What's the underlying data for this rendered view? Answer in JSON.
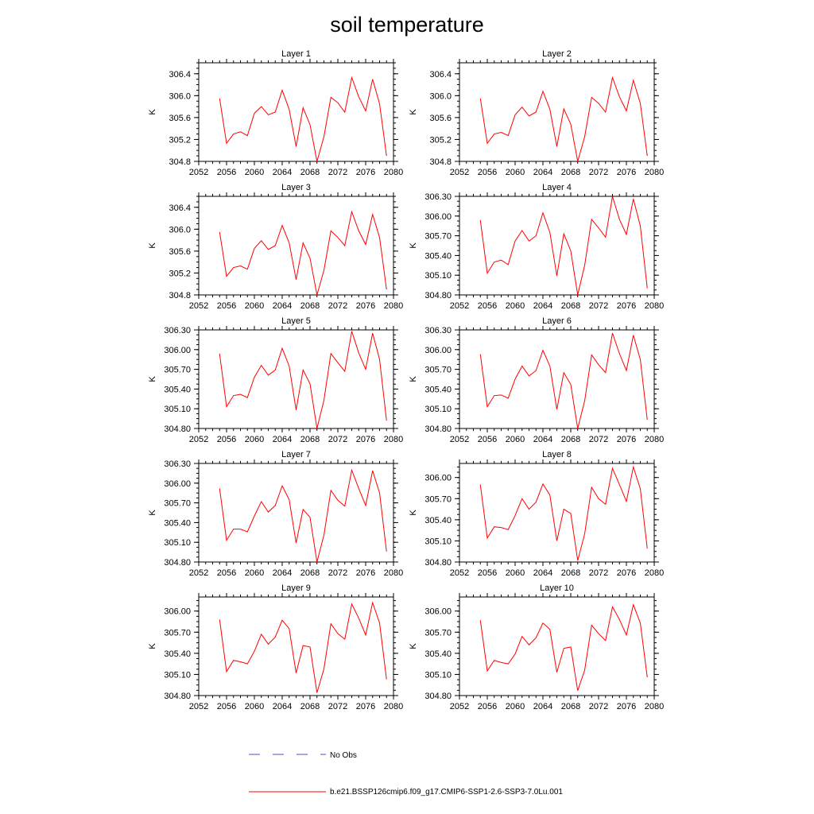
{
  "title": "soil temperature",
  "legend": {
    "obs_label": "No Obs",
    "obs_color": "#4455cc",
    "model_label": "b.e21.BSSP126cmip6.f09_g17.CMIP6-SSP1-2.6-SSP3-7.0Lu.001",
    "model_color": "#ff0000"
  },
  "chart_data": [
    {
      "type": "line",
      "title": "Layer 1",
      "xlabel": "",
      "ylabel": "K",
      "xlim": [
        2052,
        2080
      ],
      "ylim": [
        304.8,
        306.6
      ],
      "xticks": [
        "2052",
        "2056",
        "2060",
        "2064",
        "2068",
        "2072",
        "2076",
        "2080"
      ],
      "yticks": [
        "304.8",
        "305.2",
        "305.6",
        "306.0",
        "306.4"
      ],
      "x": [
        2055,
        2056,
        2057,
        2058,
        2059,
        2060,
        2061,
        2062,
        2063,
        2064,
        2065,
        2066,
        2067,
        2068,
        2069,
        2070,
        2071,
        2072,
        2073,
        2074,
        2075,
        2076,
        2077,
        2078,
        2079
      ],
      "series": [
        {
          "name": "b.e21.BSSP126cmip6.f09_g17.CMIP6-SSP1-2.6-SSP3-7.0Lu.001",
          "values": [
            305.95,
            305.13,
            305.3,
            305.34,
            305.27,
            305.68,
            305.8,
            305.65,
            305.7,
            306.1,
            305.75,
            305.07,
            305.78,
            305.47,
            304.8,
            305.25,
            305.97,
            305.87,
            305.7,
            306.33,
            305.98,
            305.72,
            306.3,
            305.85,
            304.9
          ]
        }
      ]
    },
    {
      "type": "line",
      "title": "Layer 2",
      "xlabel": "",
      "ylabel": "K",
      "xlim": [
        2052,
        2080
      ],
      "ylim": [
        304.8,
        306.6
      ],
      "xticks": [
        "2052",
        "2056",
        "2060",
        "2064",
        "2068",
        "2072",
        "2076",
        "2080"
      ],
      "yticks": [
        "304.8",
        "305.2",
        "305.6",
        "306.0",
        "306.4"
      ],
      "x": [
        2055,
        2056,
        2057,
        2058,
        2059,
        2060,
        2061,
        2062,
        2063,
        2064,
        2065,
        2066,
        2067,
        2068,
        2069,
        2070,
        2071,
        2072,
        2073,
        2074,
        2075,
        2076,
        2077,
        2078,
        2079
      ],
      "series": [
        {
          "name": "b.e21.BSSP126cmip6.f09_g17.CMIP6-SSP1-2.6-SSP3-7.0Lu.001",
          "values": [
            305.95,
            305.13,
            305.3,
            305.33,
            305.27,
            305.65,
            305.79,
            305.63,
            305.7,
            306.08,
            305.75,
            305.07,
            305.76,
            305.48,
            304.8,
            305.25,
            305.97,
            305.86,
            305.7,
            306.33,
            305.98,
            305.72,
            306.28,
            305.86,
            304.9
          ]
        }
      ]
    },
    {
      "type": "line",
      "title": "Layer 3",
      "xlabel": "",
      "ylabel": "K",
      "xlim": [
        2052,
        2080
      ],
      "ylim": [
        304.8,
        306.6
      ],
      "xticks": [
        "2052",
        "2056",
        "2060",
        "2064",
        "2068",
        "2072",
        "2076",
        "2080"
      ],
      "yticks": [
        "304.8",
        "305.2",
        "305.6",
        "306.0",
        "306.4"
      ],
      "x": [
        2055,
        2056,
        2057,
        2058,
        2059,
        2060,
        2061,
        2062,
        2063,
        2064,
        2065,
        2066,
        2067,
        2068,
        2069,
        2070,
        2071,
        2072,
        2073,
        2074,
        2075,
        2076,
        2077,
        2078,
        2079
      ],
      "series": [
        {
          "name": "b.e21.BSSP126cmip6.f09_g17.CMIP6-SSP1-2.6-SSP3-7.0Lu.001",
          "values": [
            305.95,
            305.14,
            305.3,
            305.33,
            305.27,
            305.65,
            305.79,
            305.63,
            305.7,
            306.07,
            305.75,
            305.08,
            305.75,
            305.47,
            304.8,
            305.25,
            305.97,
            305.85,
            305.7,
            306.32,
            305.97,
            305.72,
            306.27,
            305.85,
            304.9
          ]
        }
      ]
    },
    {
      "type": "line",
      "title": "Layer 4",
      "xlabel": "",
      "ylabel": "K",
      "xlim": [
        2052,
        2080
      ],
      "ylim": [
        304.8,
        306.3
      ],
      "xticks": [
        "2052",
        "2056",
        "2060",
        "2064",
        "2068",
        "2072",
        "2076",
        "2080"
      ],
      "yticks": [
        "304.80",
        "305.10",
        "305.40",
        "305.70",
        "306.00",
        "306.30"
      ],
      "x": [
        2055,
        2056,
        2057,
        2058,
        2059,
        2060,
        2061,
        2062,
        2063,
        2064,
        2065,
        2066,
        2067,
        2068,
        2069,
        2070,
        2071,
        2072,
        2073,
        2074,
        2075,
        2076,
        2077,
        2078,
        2079
      ],
      "series": [
        {
          "name": "b.e21.BSSP126cmip6.f09_g17.CMIP6-SSP1-2.6-SSP3-7.0Lu.001",
          "values": [
            305.94,
            305.13,
            305.3,
            305.33,
            305.26,
            305.62,
            305.78,
            305.62,
            305.7,
            306.05,
            305.75,
            305.09,
            305.73,
            305.47,
            304.8,
            305.25,
            305.95,
            305.82,
            305.68,
            306.3,
            305.95,
            305.72,
            306.26,
            305.85,
            304.9
          ]
        }
      ]
    },
    {
      "type": "line",
      "title": "Layer 5",
      "xlabel": "",
      "ylabel": "K",
      "xlim": [
        2052,
        2080
      ],
      "ylim": [
        304.8,
        306.3
      ],
      "xticks": [
        "2052",
        "2056",
        "2060",
        "2064",
        "2068",
        "2072",
        "2076",
        "2080"
      ],
      "yticks": [
        "304.80",
        "305.10",
        "305.40",
        "305.70",
        "306.00",
        "306.30"
      ],
      "x": [
        2055,
        2056,
        2057,
        2058,
        2059,
        2060,
        2061,
        2062,
        2063,
        2064,
        2065,
        2066,
        2067,
        2068,
        2069,
        2070,
        2071,
        2072,
        2073,
        2074,
        2075,
        2076,
        2077,
        2078,
        2079
      ],
      "series": [
        {
          "name": "b.e21.BSSP126cmip6.f09_g17.CMIP6-SSP1-2.6-SSP3-7.0Lu.001",
          "values": [
            305.94,
            305.13,
            305.3,
            305.32,
            305.27,
            305.58,
            305.76,
            305.61,
            305.69,
            306.02,
            305.75,
            305.08,
            305.69,
            305.48,
            304.8,
            305.23,
            305.94,
            305.8,
            305.67,
            306.28,
            305.95,
            305.7,
            306.25,
            305.85,
            304.92
          ]
        }
      ]
    },
    {
      "type": "line",
      "title": "Layer 6",
      "xlabel": "",
      "ylabel": "K",
      "xlim": [
        2052,
        2080
      ],
      "ylim": [
        304.8,
        306.3
      ],
      "xticks": [
        "2052",
        "2056",
        "2060",
        "2064",
        "2068",
        "2072",
        "2076",
        "2080"
      ],
      "yticks": [
        "304.80",
        "305.10",
        "305.40",
        "305.70",
        "306.00",
        "306.30"
      ],
      "x": [
        2055,
        2056,
        2057,
        2058,
        2059,
        2060,
        2061,
        2062,
        2063,
        2064,
        2065,
        2066,
        2067,
        2068,
        2069,
        2070,
        2071,
        2072,
        2073,
        2074,
        2075,
        2076,
        2077,
        2078,
        2079
      ],
      "series": [
        {
          "name": "b.e21.BSSP126cmip6.f09_g17.CMIP6-SSP1-2.6-SSP3-7.0Lu.001",
          "values": [
            305.93,
            305.13,
            305.3,
            305.31,
            305.26,
            305.55,
            305.75,
            305.6,
            305.68,
            305.99,
            305.75,
            305.09,
            305.65,
            305.47,
            304.8,
            305.22,
            305.92,
            305.77,
            305.65,
            306.25,
            305.94,
            305.68,
            306.22,
            305.85,
            304.93
          ]
        }
      ]
    },
    {
      "type": "line",
      "title": "Layer 7",
      "xlabel": "",
      "ylabel": "K",
      "xlim": [
        2052,
        2080
      ],
      "ylim": [
        304.8,
        306.3
      ],
      "xticks": [
        "2052",
        "2056",
        "2060",
        "2064",
        "2068",
        "2072",
        "2076",
        "2080"
      ],
      "yticks": [
        "304.80",
        "305.10",
        "305.40",
        "305.70",
        "306.00",
        "306.30"
      ],
      "x": [
        2055,
        2056,
        2057,
        2058,
        2059,
        2060,
        2061,
        2062,
        2063,
        2064,
        2065,
        2066,
        2067,
        2068,
        2069,
        2070,
        2071,
        2072,
        2073,
        2074,
        2075,
        2076,
        2077,
        2078,
        2079
      ],
      "series": [
        {
          "name": "b.e21.BSSP126cmip6.f09_g17.CMIP6-SSP1-2.6-SSP3-7.0Lu.001",
          "values": [
            305.92,
            305.13,
            305.3,
            305.3,
            305.26,
            305.5,
            305.72,
            305.56,
            305.66,
            305.96,
            305.75,
            305.09,
            305.6,
            305.48,
            304.8,
            305.21,
            305.89,
            305.74,
            305.65,
            306.2,
            305.92,
            305.66,
            306.19,
            305.85,
            304.96
          ]
        }
      ]
    },
    {
      "type": "line",
      "title": "Layer 8",
      "xlabel": "",
      "ylabel": "K",
      "xlim": [
        2052,
        2080
      ],
      "ylim": [
        304.8,
        306.2
      ],
      "xticks": [
        "2052",
        "2056",
        "2060",
        "2064",
        "2068",
        "2072",
        "2076",
        "2080"
      ],
      "yticks": [
        "304.80",
        "305.10",
        "305.40",
        "305.70",
        "306.00"
      ],
      "x": [
        2055,
        2056,
        2057,
        2058,
        2059,
        2060,
        2061,
        2062,
        2063,
        2064,
        2065,
        2066,
        2067,
        2068,
        2069,
        2070,
        2071,
        2072,
        2073,
        2074,
        2075,
        2076,
        2077,
        2078,
        2079
      ],
      "series": [
        {
          "name": "b.e21.BSSP126cmip6.f09_g17.CMIP6-SSP1-2.6-SSP3-7.0Lu.001",
          "values": [
            305.9,
            305.14,
            305.3,
            305.29,
            305.26,
            305.46,
            305.7,
            305.55,
            305.65,
            305.91,
            305.75,
            305.1,
            305.55,
            305.49,
            304.82,
            305.2,
            305.86,
            305.7,
            305.62,
            306.13,
            305.9,
            305.66,
            306.15,
            305.84,
            304.99
          ]
        }
      ]
    },
    {
      "type": "line",
      "title": "Layer 9",
      "xlabel": "",
      "ylabel": "K",
      "xlim": [
        2052,
        2080
      ],
      "ylim": [
        304.8,
        306.2
      ],
      "xticks": [
        "2052",
        "2056",
        "2060",
        "2064",
        "2068",
        "2072",
        "2076",
        "2080"
      ],
      "yticks": [
        "304.80",
        "305.10",
        "305.40",
        "305.70",
        "306.00"
      ],
      "x": [
        2055,
        2056,
        2057,
        2058,
        2059,
        2060,
        2061,
        2062,
        2063,
        2064,
        2065,
        2066,
        2067,
        2068,
        2069,
        2070,
        2071,
        2072,
        2073,
        2074,
        2075,
        2076,
        2077,
        2078,
        2079
      ],
      "series": [
        {
          "name": "b.e21.BSSP126cmip6.f09_g17.CMIP6-SSP1-2.6-SSP3-7.0Lu.001",
          "values": [
            305.88,
            305.14,
            305.3,
            305.28,
            305.25,
            305.43,
            305.67,
            305.53,
            305.63,
            305.87,
            305.75,
            305.12,
            305.51,
            305.49,
            304.84,
            305.18,
            305.82,
            305.68,
            305.6,
            306.1,
            305.9,
            305.66,
            306.12,
            305.83,
            305.03
          ]
        }
      ]
    },
    {
      "type": "line",
      "title": "Layer 10",
      "xlabel": "",
      "ylabel": "K",
      "xlim": [
        2052,
        2080
      ],
      "ylim": [
        304.8,
        306.2
      ],
      "xticks": [
        "2052",
        "2056",
        "2060",
        "2064",
        "2068",
        "2072",
        "2076",
        "2080"
      ],
      "yticks": [
        "304.80",
        "305.10",
        "305.40",
        "305.70",
        "306.00"
      ],
      "x": [
        2055,
        2056,
        2057,
        2058,
        2059,
        2060,
        2061,
        2062,
        2063,
        2064,
        2065,
        2066,
        2067,
        2068,
        2069,
        2070,
        2071,
        2072,
        2073,
        2074,
        2075,
        2076,
        2077,
        2078,
        2079
      ],
      "series": [
        {
          "name": "b.e21.BSSP126cmip6.f09_g17.CMIP6-SSP1-2.6-SSP3-7.0Lu.001",
          "values": [
            305.87,
            305.15,
            305.3,
            305.27,
            305.25,
            305.39,
            305.64,
            305.52,
            305.62,
            305.83,
            305.74,
            305.13,
            305.47,
            305.49,
            304.87,
            305.16,
            305.8,
            305.68,
            305.58,
            306.06,
            305.88,
            305.66,
            306.09,
            305.83,
            305.06
          ]
        }
      ]
    }
  ]
}
